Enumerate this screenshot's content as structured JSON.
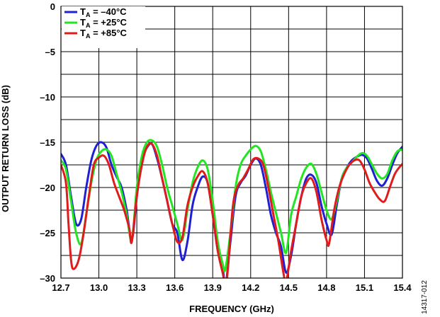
{
  "figure_id": "14317-012",
  "chart_data": {
    "type": "line",
    "title": "",
    "xlabel": "FREQUENCY (GHz)",
    "ylabel": "OUTPUT RETURN LOSS (dB)",
    "xlim": [
      12.7,
      15.4
    ],
    "ylim": [
      -30,
      0
    ],
    "xticks": [
      "12.7",
      "13.0",
      "13.3",
      "13.6",
      "13.9",
      "14.2",
      "14.5",
      "14.8",
      "15.1",
      "15.4"
    ],
    "yticks": [
      "0",
      "–5",
      "–10",
      "–15",
      "–20",
      "–25",
      "–30"
    ],
    "grid": true,
    "legend_position": "top-left",
    "series": [
      {
        "name_main": "T",
        "name_sub": "A",
        "name_rest": " = –40°C",
        "color": "#1f1fd4",
        "points": [
          [
            12.7,
            -16.3
          ],
          [
            12.74,
            -17.5
          ],
          [
            12.78,
            -21
          ],
          [
            12.82,
            -24
          ],
          [
            12.86,
            -23.5
          ],
          [
            12.9,
            -20
          ],
          [
            12.94,
            -17
          ],
          [
            12.98,
            -15.4
          ],
          [
            13.02,
            -15
          ],
          [
            13.06,
            -15.6
          ],
          [
            13.1,
            -17.5
          ],
          [
            13.14,
            -18.8
          ],
          [
            13.18,
            -20
          ],
          [
            13.22,
            -22.5
          ],
          [
            13.26,
            -25.8
          ],
          [
            13.3,
            -21
          ],
          [
            13.34,
            -17
          ],
          [
            13.38,
            -15.6
          ],
          [
            13.42,
            -15.2
          ],
          [
            13.46,
            -16.8
          ],
          [
            13.5,
            -19
          ],
          [
            13.54,
            -21.5
          ],
          [
            13.58,
            -24
          ],
          [
            13.62,
            -25
          ],
          [
            13.66,
            -28
          ],
          [
            13.7,
            -26
          ],
          [
            13.74,
            -22
          ],
          [
            13.78,
            -20
          ],
          [
            13.82,
            -18.8
          ],
          [
            13.86,
            -19.5
          ],
          [
            13.9,
            -23
          ],
          [
            13.94,
            -27
          ],
          [
            13.98,
            -29
          ],
          [
            14.0,
            -31
          ],
          [
            14.04,
            -26
          ],
          [
            14.08,
            -21
          ],
          [
            14.12,
            -19.5
          ],
          [
            14.16,
            -18.7
          ],
          [
            14.2,
            -17.5
          ],
          [
            14.24,
            -16.8
          ],
          [
            14.28,
            -17.5
          ],
          [
            14.32,
            -20
          ],
          [
            14.36,
            -23
          ],
          [
            14.4,
            -25
          ],
          [
            14.44,
            -26.5
          ],
          [
            14.48,
            -29.4
          ],
          [
            14.52,
            -27.5
          ],
          [
            14.56,
            -24
          ],
          [
            14.6,
            -21
          ],
          [
            14.64,
            -19
          ],
          [
            14.68,
            -18.6
          ],
          [
            14.72,
            -19.5
          ],
          [
            14.76,
            -22
          ],
          [
            14.8,
            -24
          ],
          [
            14.84,
            -25.2
          ],
          [
            14.88,
            -22
          ],
          [
            14.92,
            -19
          ],
          [
            14.96,
            -17.8
          ],
          [
            15.0,
            -17
          ],
          [
            15.04,
            -16.6
          ],
          [
            15.08,
            -16.4
          ],
          [
            15.12,
            -16.8
          ],
          [
            15.16,
            -18
          ],
          [
            15.2,
            -19.3
          ],
          [
            15.24,
            -19.8
          ],
          [
            15.28,
            -19
          ],
          [
            15.32,
            -17.5
          ],
          [
            15.36,
            -16.2
          ],
          [
            15.4,
            -15.5
          ]
        ]
      },
      {
        "name_main": "T",
        "name_sub": "A",
        "name_rest": " = +25°C",
        "color": "#22e622",
        "points": [
          [
            12.7,
            -17
          ],
          [
            12.74,
            -18
          ],
          [
            12.78,
            -21.5
          ],
          [
            12.82,
            -25
          ],
          [
            12.86,
            -26.2
          ],
          [
            12.9,
            -23
          ],
          [
            12.94,
            -19.5
          ],
          [
            12.98,
            -17
          ],
          [
            13.02,
            -16
          ],
          [
            13.06,
            -15.8
          ],
          [
            13.1,
            -16.5
          ],
          [
            13.14,
            -18.5
          ],
          [
            13.18,
            -20.5
          ],
          [
            13.22,
            -23
          ],
          [
            13.26,
            -25.8
          ],
          [
            13.3,
            -20
          ],
          [
            13.34,
            -16.5
          ],
          [
            13.38,
            -15
          ],
          [
            13.42,
            -14.8
          ],
          [
            13.46,
            -15.5
          ],
          [
            13.5,
            -17.5
          ],
          [
            13.54,
            -20
          ],
          [
            13.58,
            -22
          ],
          [
            13.62,
            -24
          ],
          [
            13.66,
            -25.8
          ],
          [
            13.7,
            -22.5
          ],
          [
            13.74,
            -19.5
          ],
          [
            13.78,
            -17.8
          ],
          [
            13.82,
            -17
          ],
          [
            13.86,
            -18
          ],
          [
            13.9,
            -21.5
          ],
          [
            13.94,
            -26
          ],
          [
            13.98,
            -28.5
          ],
          [
            14.0,
            -29
          ],
          [
            14.04,
            -25
          ],
          [
            14.08,
            -20
          ],
          [
            14.12,
            -17.5
          ],
          [
            14.16,
            -16.5
          ],
          [
            14.2,
            -15.8
          ],
          [
            14.24,
            -15.4
          ],
          [
            14.28,
            -16
          ],
          [
            14.32,
            -18
          ],
          [
            14.36,
            -20.5
          ],
          [
            14.4,
            -22.8
          ],
          [
            14.44,
            -25
          ],
          [
            14.48,
            -27.2
          ],
          [
            14.52,
            -23
          ],
          [
            14.56,
            -21
          ],
          [
            14.6,
            -19
          ],
          [
            14.64,
            -17.8
          ],
          [
            14.68,
            -17.4
          ],
          [
            14.72,
            -18.5
          ],
          [
            14.76,
            -20.5
          ],
          [
            14.8,
            -22.5
          ],
          [
            14.84,
            -23.5
          ],
          [
            14.88,
            -21.5
          ],
          [
            14.92,
            -19
          ],
          [
            14.96,
            -17.8
          ],
          [
            15.0,
            -17.2
          ],
          [
            15.04,
            -16.6
          ],
          [
            15.08,
            -16.2
          ],
          [
            15.12,
            -16.5
          ],
          [
            15.16,
            -17.5
          ],
          [
            15.2,
            -18.5
          ],
          [
            15.24,
            -19
          ],
          [
            15.28,
            -18.5
          ],
          [
            15.32,
            -17
          ],
          [
            15.36,
            -16
          ],
          [
            15.4,
            -15.8
          ]
        ]
      },
      {
        "name_main": "T",
        "name_sub": "A",
        "name_rest": " = +85°C",
        "color": "#e01b1b",
        "points": [
          [
            12.7,
            -17.5
          ],
          [
            12.74,
            -19.5
          ],
          [
            12.76,
            -24
          ],
          [
            12.78,
            -28
          ],
          [
            12.8,
            -29
          ],
          [
            12.84,
            -28
          ],
          [
            12.88,
            -25
          ],
          [
            12.92,
            -21
          ],
          [
            12.96,
            -17.5
          ],
          [
            13.0,
            -16.7
          ],
          [
            13.04,
            -16.5
          ],
          [
            13.08,
            -17.5
          ],
          [
            13.12,
            -19.5
          ],
          [
            13.16,
            -21
          ],
          [
            13.2,
            -22.5
          ],
          [
            13.24,
            -24.5
          ],
          [
            13.26,
            -26
          ],
          [
            13.3,
            -21
          ],
          [
            13.34,
            -17.5
          ],
          [
            13.38,
            -15.5
          ],
          [
            13.42,
            -15.2
          ],
          [
            13.46,
            -16.5
          ],
          [
            13.5,
            -19
          ],
          [
            13.54,
            -21.5
          ],
          [
            13.58,
            -24
          ],
          [
            13.62,
            -26
          ],
          [
            13.66,
            -25.5
          ],
          [
            13.7,
            -22
          ],
          [
            13.74,
            -20
          ],
          [
            13.78,
            -18.8
          ],
          [
            13.82,
            -18.2
          ],
          [
            13.86,
            -19.5
          ],
          [
            13.9,
            -23
          ],
          [
            13.94,
            -27
          ],
          [
            13.98,
            -29.5
          ],
          [
            14.0,
            -31
          ],
          [
            14.02,
            -29
          ],
          [
            14.06,
            -22
          ],
          [
            14.1,
            -19.8
          ],
          [
            14.14,
            -19
          ],
          [
            14.18,
            -18
          ],
          [
            14.22,
            -16.9
          ],
          [
            14.26,
            -16.8
          ],
          [
            14.3,
            -17.5
          ],
          [
            14.34,
            -20
          ],
          [
            14.38,
            -23
          ],
          [
            14.42,
            -26
          ],
          [
            14.46,
            -29.5
          ],
          [
            14.48,
            -30.5
          ],
          [
            14.52,
            -27
          ],
          [
            14.56,
            -24
          ],
          [
            14.6,
            -21
          ],
          [
            14.64,
            -19.5
          ],
          [
            14.68,
            -19
          ],
          [
            14.72,
            -20.5
          ],
          [
            14.76,
            -23.5
          ],
          [
            14.8,
            -25.8
          ],
          [
            14.82,
            -26.2
          ],
          [
            14.86,
            -22.5
          ],
          [
            14.9,
            -20
          ],
          [
            14.94,
            -18.5
          ],
          [
            14.98,
            -17.5
          ],
          [
            15.02,
            -17
          ],
          [
            15.06,
            -17
          ],
          [
            15.1,
            -18
          ],
          [
            15.14,
            -19.5
          ],
          [
            15.18,
            -20.5
          ],
          [
            15.22,
            -21.3
          ],
          [
            15.26,
            -21.5
          ],
          [
            15.3,
            -20
          ],
          [
            15.34,
            -18.5
          ],
          [
            15.38,
            -17.7
          ],
          [
            15.4,
            -17.4
          ]
        ]
      }
    ]
  }
}
